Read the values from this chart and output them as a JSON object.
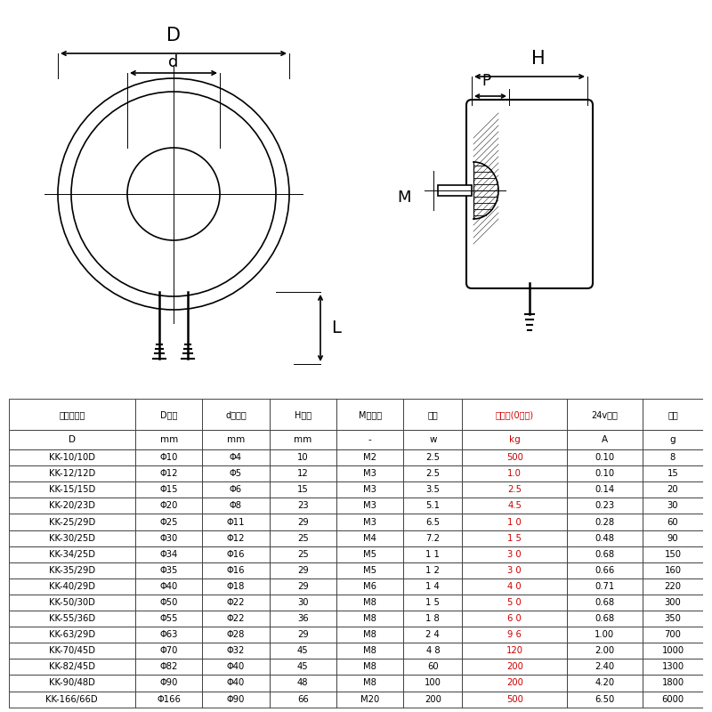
{
  "table_headers": [
    "失电试型号",
    "D直径",
    "d吸合面",
    "H高度",
    "M螺纹孔",
    "功率",
    "吸引力(0距离)",
    "24v电流",
    "自重"
  ],
  "table_subheaders": [
    "D",
    "mm",
    "mm",
    "mm",
    "-",
    "w",
    "kg",
    "A",
    "g"
  ],
  "table_data": [
    [
      "KK-10/10D",
      "Φ10",
      "Φ4",
      "10",
      "M2",
      "2.5",
      "500",
      "0.10",
      "8"
    ],
    [
      "KK-12/12D",
      "Φ12",
      "Φ5",
      "12",
      "M3",
      "2.5",
      "1.0",
      "0.10",
      "15"
    ],
    [
      "KK-15/15D",
      "Φ15",
      "Φ6",
      "15",
      "M3",
      "3.5",
      "2.5",
      "0.14",
      "20"
    ],
    [
      "KK-20/23D",
      "Φ20",
      "Φ8",
      "23",
      "M3",
      "5.1",
      "4.5",
      "0.23",
      "30"
    ],
    [
      "KK-25/29D",
      "Φ25",
      "Φ11",
      "29",
      "M3",
      "6.5",
      "1 0",
      "0.28",
      "60"
    ],
    [
      "KK-30/25D",
      "Φ30",
      "Φ12",
      "25",
      "M4",
      "7.2",
      "1 5",
      "0.48",
      "90"
    ],
    [
      "KK-34/25D",
      "Φ34",
      "Φ16",
      "25",
      "M5",
      "1 1",
      "3 0",
      "0.68",
      "150"
    ],
    [
      "KK-35/29D",
      "Φ35",
      "Φ16",
      "29",
      "M5",
      "1 2",
      "3 0",
      "0.66",
      "160"
    ],
    [
      "KK-40/29D",
      "Φ40",
      "Φ18",
      "29",
      "M6",
      "1 4",
      "4 0",
      "0.71",
      "220"
    ],
    [
      "KK-50/30D",
      "Φ50",
      "Φ22",
      "30",
      "M8",
      "1 5",
      "5 0",
      "0.68",
      "300"
    ],
    [
      "KK-55/36D",
      "Φ55",
      "Φ22",
      "36",
      "M8",
      "1 8",
      "6 0",
      "0.68",
      "350"
    ],
    [
      "KK-63/29D",
      "Φ63",
      "Φ28",
      "29",
      "M8",
      "2 4",
      "9 6",
      "1.00",
      "700"
    ],
    [
      "KK-70/45D",
      "Φ70",
      "Φ32",
      "45",
      "M8",
      "4 8",
      "120",
      "2.00",
      "1000"
    ],
    [
      "KK-82/45D",
      "Φ82",
      "Φ40",
      "45",
      "M8",
      "60",
      "200",
      "2.40",
      "1300"
    ],
    [
      "KK-90/48D",
      "Φ90",
      "Φ40",
      "48",
      "M8",
      "100",
      "200",
      "4.20",
      "1800"
    ],
    [
      "KK-166/66D",
      "Φ166",
      "Φ90",
      "66",
      "M20",
      "200",
      "500",
      "6.50",
      "6000"
    ]
  ],
  "red_col_index": 6,
  "bg_color": "#ffffff",
  "line_color": "#000000",
  "red_color": "#cc0000"
}
